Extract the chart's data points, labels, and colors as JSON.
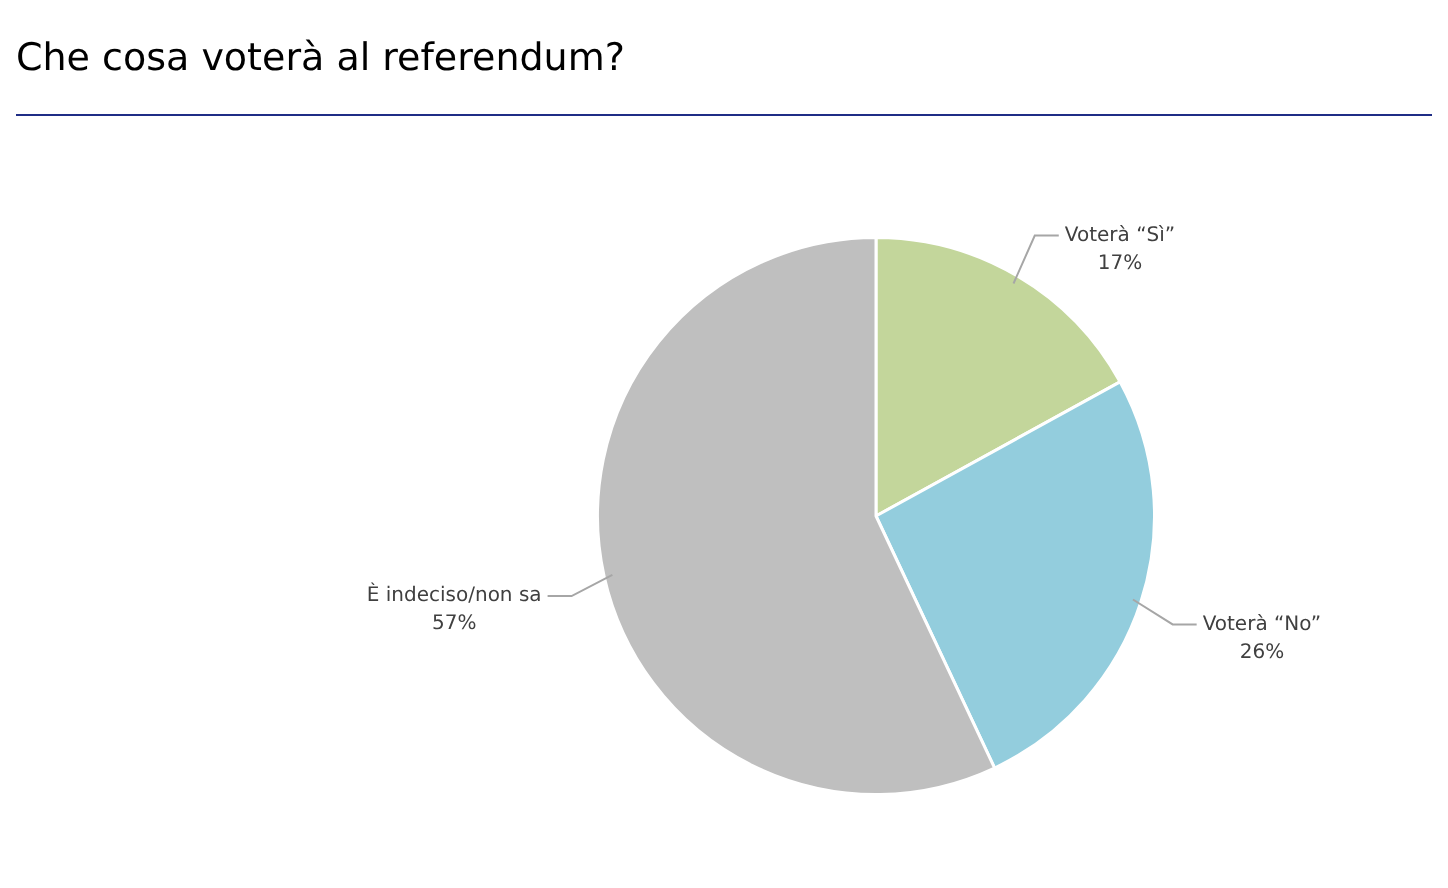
{
  "chart_data": {
    "type": "pie",
    "title": "Che cosa voterà al referendum?",
    "categories": [
      "Voterà “Sì”",
      "Voterà “No”",
      "È indeciso/non sa"
    ],
    "values": [
      17,
      26,
      57
    ],
    "value_labels": [
      "17%",
      "26%",
      "57%"
    ],
    "colors": [
      "#c3d69b",
      "#93cddd",
      "#bfbfbf"
    ],
    "legend": false
  }
}
